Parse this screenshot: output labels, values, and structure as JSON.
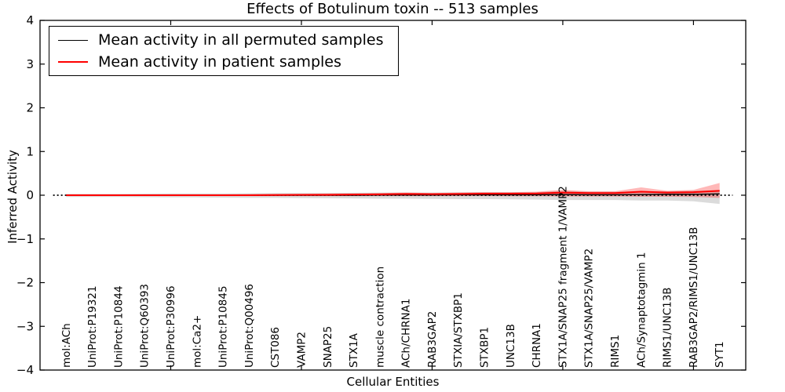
{
  "chart": {
    "title": "Effects of Botulinum toxin -- 513 samples",
    "xlabel": "Cellular Entities",
    "ylabel": "Inferred Activity"
  },
  "legend": {
    "items": [
      {
        "label": "Mean activity in all permuted samples",
        "color": "#000000"
      },
      {
        "label": "Mean activity in patient samples",
        "color": "#ff0000"
      }
    ]
  },
  "chart_data": {
    "type": "line",
    "title": "Effects of Botulinum toxin -- 513 samples",
    "xlabel": "Cellular Entities",
    "ylabel": "Inferred Activity",
    "ylim": [
      -4,
      4
    ],
    "ytick_labels": [
      "4",
      "3",
      "2",
      "1",
      "0",
      "−1",
      "−2",
      "−3",
      "−4"
    ],
    "ytick_values": [
      4,
      3,
      2,
      1,
      0,
      -1,
      -2,
      -3,
      -4
    ],
    "x_major_tick_units": [
      5,
      10,
      15,
      20,
      25
    ],
    "grid": false,
    "legend_position": "upper left",
    "zero_line": true,
    "categories": [
      "mol:ACh",
      "UniProt:P19321",
      "UniProt:P10844",
      "UniProt:Q60393",
      "UniProt:P30996",
      "mol:Ca2+",
      "UniProt:P10845",
      "UniProt:Q00496",
      "CST086",
      "VAMP2",
      "SNAP25",
      "STX1A",
      "muscle contraction",
      "ACh/CHRNA1",
      "RAB3GAP2",
      "STXIA/STXBP1",
      "STXBP1",
      "UNC13B",
      "CHRNA1",
      "STX1A/SNAP25 fragment 1/VAMP2",
      "STX1A/SNAP25/VAMP2",
      "RIMS1",
      "ACh/Synaptotagmin 1",
      "RIMS1/UNC13B",
      "RAB3GAP2/RIMS1/UNC13B",
      "SYT1"
    ],
    "series": [
      {
        "name": "Mean activity in all permuted samples",
        "color": "#000000",
        "width": 1.4,
        "values": [
          0,
          0,
          0,
          0,
          0,
          0,
          0,
          0,
          0,
          0,
          0,
          0,
          0.005,
          0.005,
          0.005,
          0.01,
          0.01,
          0.01,
          0.01,
          0.015,
          0.01,
          0.01,
          0.015,
          0.02,
          0.02,
          0.03
        ]
      },
      {
        "name": "Mean activity in patient samples",
        "color": "#ff0000",
        "width": 2.0,
        "values": [
          0,
          0,
          0,
          0,
          0,
          0,
          0,
          0,
          0.005,
          0.01,
          0.01,
          0.015,
          0.02,
          0.03,
          0.025,
          0.03,
          0.035,
          0.035,
          0.04,
          0.06,
          0.05,
          0.05,
          0.08,
          0.06,
          0.07,
          0.1
        ]
      }
    ],
    "bands": [
      {
        "name": "permuted-confidence-band",
        "color": "#000000",
        "opacity": 0.14,
        "upper": [
          0.03,
          0.03,
          0.03,
          0.035,
          0.04,
          0.04,
          0.04,
          0.045,
          0.05,
          0.05,
          0.05,
          0.055,
          0.06,
          0.06,
          0.06,
          0.065,
          0.07,
          0.07,
          0.07,
          0.1,
          0.08,
          0.08,
          0.09,
          0.09,
          0.1,
          0.12
        ],
        "lower": [
          -0.04,
          -0.04,
          -0.04,
          -0.045,
          -0.05,
          -0.05,
          -0.055,
          -0.06,
          -0.06,
          -0.065,
          -0.07,
          -0.075,
          -0.08,
          -0.08,
          -0.085,
          -0.09,
          -0.09,
          -0.095,
          -0.1,
          -0.11,
          -0.11,
          -0.11,
          -0.12,
          -0.12,
          -0.14,
          -0.2
        ]
      },
      {
        "name": "patient-confidence-band",
        "color": "#ff0000",
        "opacity": 0.28,
        "upper": [
          0.02,
          0.02,
          0.02,
          0.02,
          0.02,
          0.02,
          0.02,
          0.025,
          0.03,
          0.03,
          0.04,
          0.04,
          0.05,
          0.06,
          0.05,
          0.06,
          0.07,
          0.07,
          0.08,
          0.12,
          0.09,
          0.09,
          0.18,
          0.1,
          0.12,
          0.28
        ],
        "lower": [
          -0.02,
          -0.02,
          -0.02,
          -0.02,
          -0.02,
          -0.02,
          -0.02,
          -0.02,
          -0.02,
          -0.02,
          -0.02,
          -0.02,
          -0.02,
          -0.02,
          -0.02,
          -0.02,
          -0.02,
          -0.025,
          -0.025,
          -0.03,
          -0.03,
          -0.03,
          -0.035,
          -0.035,
          -0.04,
          -0.06
        ]
      }
    ]
  }
}
